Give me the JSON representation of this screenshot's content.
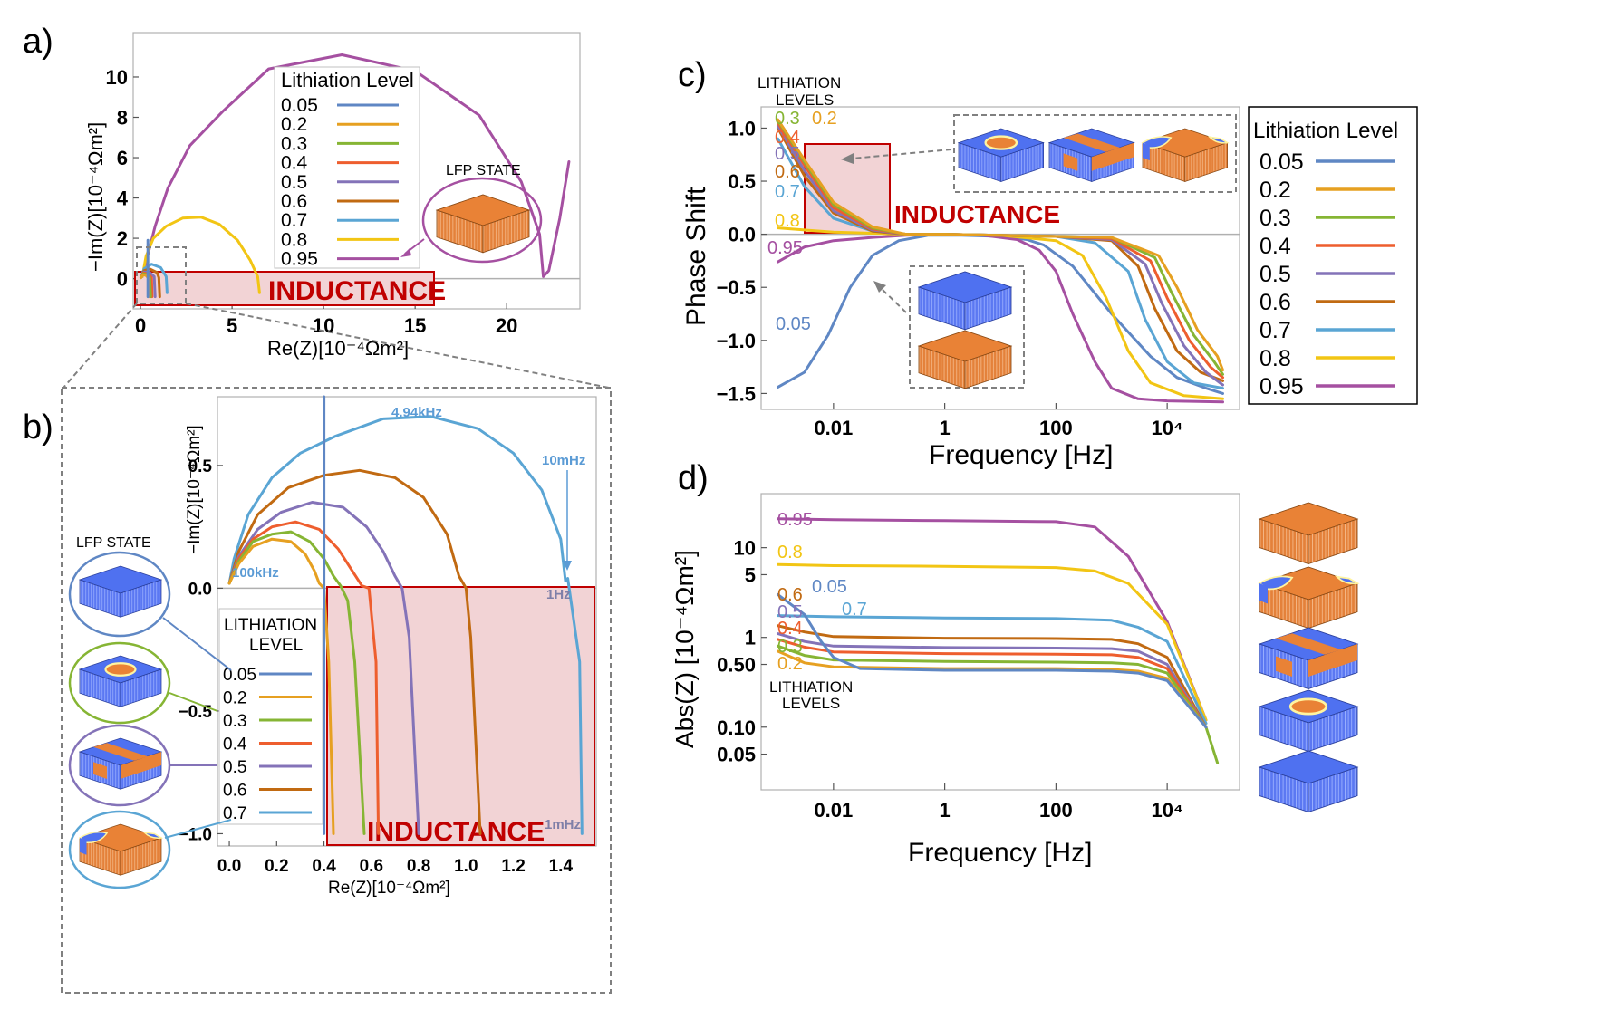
{
  "colors": {
    "0.05": "#5f87c4",
    "0.2": "#e6a021",
    "0.3": "#86b534",
    "0.4": "#ee5e2e",
    "0.5": "#8473b8",
    "0.6": "#c16a12",
    "0.7": "#5aa5d4",
    "0.8": "#f2c514",
    "0.95": "#a550a1",
    "inductance_fill": "#f2d3d5",
    "inductance_border": "#c00000",
    "blue_slab": "#4f71f0",
    "orange_slab": "#e98236"
  },
  "icons": [
    "lfp-slab-icon"
  ],
  "chart_data": [
    {
      "panel": "a)",
      "type": "line",
      "xlabel": "Re(Z)[10⁻⁴Ωm²]",
      "ylabel": "−Im(Z)[10⁻⁴Ωm²]",
      "xlim": [
        -0.4,
        24
      ],
      "ylim": [
        -1.5,
        12.2
      ],
      "xticks": [
        "0",
        "5",
        "10",
        "15",
        "20"
      ],
      "yticks": [
        "0",
        "2",
        "4",
        "6",
        "8",
        "10"
      ],
      "legend_title": "Lithiation Level",
      "legend_entries": [
        "0.05",
        "0.2",
        "0.3",
        "0.4",
        "0.5",
        "0.6",
        "0.7",
        "0.8",
        "0.95"
      ],
      "annotation": "INDUCTANCE",
      "inset_label": "LFP STATE",
      "series": [
        {
          "name": "0.95",
          "x": [
            0.1,
            0.8,
            1.5,
            2.7,
            4.5,
            7,
            11,
            15,
            18.5,
            20.8,
            21.8,
            22,
            22.3,
            22.9,
            23.4
          ],
          "y": [
            0.1,
            2.6,
            4.5,
            6.6,
            8.3,
            10.4,
            11.1,
            10.3,
            8.1,
            4.8,
            2.2,
            0.1,
            0.4,
            3,
            5.8
          ]
        },
        {
          "name": "0.8",
          "x": [
            0.1,
            0.3,
            0.7,
            1.4,
            2.3,
            3.3,
            4.3,
            5.3,
            6,
            6.4,
            6.5
          ],
          "y": [
            0.1,
            1.1,
            2,
            2.6,
            3,
            3.05,
            2.7,
            1.9,
            0.9,
            0.1,
            -0.7
          ]
        },
        {
          "name": "0.7",
          "x": [
            0.02,
            0.2,
            0.6,
            1.1,
            1.4,
            1.45
          ],
          "y": [
            0.05,
            0.5,
            0.72,
            0.55,
            0.1,
            -0.7
          ]
        },
        {
          "name": "0.6",
          "x": [
            0.02,
            0.2,
            0.5,
            0.9,
            1.0,
            1.05
          ],
          "y": [
            0.05,
            0.4,
            0.48,
            0.3,
            0.05,
            -0.9
          ]
        },
        {
          "name": "0.5",
          "x": [
            0.02,
            0.2,
            0.5,
            0.75,
            0.8
          ],
          "y": [
            0.05,
            0.33,
            0.3,
            0.1,
            -0.9
          ]
        },
        {
          "name": "0.4",
          "x": [
            0.02,
            0.15,
            0.4,
            0.6,
            0.63
          ],
          "y": [
            0.05,
            0.28,
            0.25,
            0.05,
            -0.9
          ]
        },
        {
          "name": "0.3",
          "x": [
            0.02,
            0.15,
            0.35,
            0.5,
            0.55
          ],
          "y": [
            0.05,
            0.24,
            0.2,
            0.05,
            -0.9
          ]
        },
        {
          "name": "0.2",
          "x": [
            0.02,
            0.12,
            0.3,
            0.42,
            0.45
          ],
          "y": [
            0.05,
            0.2,
            0.16,
            0.03,
            -0.9
          ]
        },
        {
          "name": "0.05",
          "x": [
            0.4,
            0.4
          ],
          "y": [
            1.9,
            -0.9
          ]
        }
      ]
    },
    {
      "panel": "b)",
      "type": "line",
      "xlabel": "Re(Z)[10⁻⁴Ωm²]",
      "ylabel": "−Im(Z)[10⁻⁴Ωm²]",
      "xlim": [
        -0.05,
        1.55
      ],
      "ylim": [
        -1.05,
        0.78
      ],
      "xticks": [
        "0.0",
        "0.2",
        "0.4",
        "0.6",
        "0.8",
        "1.0",
        "1.2",
        "1.4"
      ],
      "yticks": [
        "0.5",
        "0.0",
        "−0.5",
        "−1.0"
      ],
      "legend_title": [
        "LITHIATION",
        "LEVEL"
      ],
      "legend_entries": [
        "0.05",
        "0.2",
        "0.3",
        "0.4",
        "0.5",
        "0.6",
        "0.7"
      ],
      "annotation": "INDUCTANCE",
      "inset_label": "LFP STATE",
      "freq_labels": [
        "4.94kHz",
        "10mHz",
        "100kHz",
        "1Hz",
        "1mHz"
      ],
      "series": [
        {
          "name": "0.7",
          "x": [
            0.0,
            0.02,
            0.08,
            0.18,
            0.3,
            0.45,
            0.65,
            0.85,
            1.05,
            1.2,
            1.32,
            1.4,
            1.42,
            1.43,
            1.48,
            1.49
          ],
          "y": [
            0.02,
            0.12,
            0.3,
            0.45,
            0.55,
            0.62,
            0.69,
            0.7,
            0.65,
            0.55,
            0.4,
            0.2,
            0.03,
            0.04,
            -0.3,
            -1.0
          ]
        },
        {
          "name": "0.6",
          "x": [
            0.0,
            0.04,
            0.12,
            0.25,
            0.4,
            0.55,
            0.7,
            0.82,
            0.92,
            0.97,
            1.0,
            1.02,
            1.06
          ],
          "y": [
            0.02,
            0.15,
            0.3,
            0.41,
            0.46,
            0.48,
            0.45,
            0.37,
            0.22,
            0.05,
            0.0,
            -0.2,
            -1.0
          ]
        },
        {
          "name": "0.5",
          "x": [
            0.0,
            0.04,
            0.12,
            0.22,
            0.35,
            0.48,
            0.58,
            0.65,
            0.7,
            0.73,
            0.76,
            0.8
          ],
          "y": [
            0.02,
            0.13,
            0.24,
            0.31,
            0.35,
            0.33,
            0.25,
            0.15,
            0.05,
            0.0,
            -0.2,
            -1.0
          ]
        },
        {
          "name": "0.4",
          "x": [
            0.0,
            0.04,
            0.1,
            0.18,
            0.28,
            0.38,
            0.46,
            0.52,
            0.56,
            0.59,
            0.62,
            0.63
          ],
          "y": [
            0.02,
            0.12,
            0.2,
            0.25,
            0.27,
            0.24,
            0.16,
            0.07,
            0.01,
            0.0,
            -0.3,
            -1.0
          ]
        },
        {
          "name": "0.3",
          "x": [
            0.0,
            0.04,
            0.1,
            0.18,
            0.26,
            0.34,
            0.4,
            0.44,
            0.47,
            0.5,
            0.53,
            0.57
          ],
          "y": [
            0.02,
            0.11,
            0.19,
            0.22,
            0.23,
            0.19,
            0.12,
            0.05,
            0.01,
            -0.05,
            -0.3,
            -1.0
          ]
        },
        {
          "name": "0.2",
          "x": [
            0.0,
            0.04,
            0.1,
            0.18,
            0.26,
            0.32,
            0.36,
            0.38,
            0.4,
            0.42,
            0.44
          ],
          "y": [
            0.02,
            0.1,
            0.17,
            0.2,
            0.19,
            0.14,
            0.07,
            0.02,
            0.0,
            -0.3,
            -1.0
          ]
        },
        {
          "name": "0.05",
          "x": [
            0.4,
            0.4
          ],
          "y": [
            0.78,
            -1.0
          ]
        }
      ]
    },
    {
      "panel": "c)",
      "type": "line",
      "xscale": "log",
      "xlabel": "Frequency [Hz]",
      "ylabel": "Phase Shift",
      "xlim": [
        0.0005,
        200000
      ],
      "ylim": [
        -1.65,
        1.2
      ],
      "xticks": [
        "0.01",
        "1",
        "100",
        "10⁴"
      ],
      "yticks": [
        "1.0",
        "0.5",
        "0.0",
        "−0.5",
        "−1.0",
        "−1.5"
      ],
      "legend_title": "Lithiation Level",
      "legend_entries": [
        "0.05",
        "0.2",
        "0.3",
        "0.4",
        "0.5",
        "0.6",
        "0.7",
        "0.8",
        "0.95"
      ],
      "inline_title": [
        "LITHIATION",
        "LEVELS"
      ],
      "annotation": "INDUCTANCE",
      "series": [
        {
          "name": "0.05",
          "x": [
            0.001,
            0.003,
            0.008,
            0.02,
            0.05,
            0.15,
            0.5,
            2,
            10,
            30,
            60,
            200,
            1000,
            5000,
            15000,
            50000,
            100000
          ],
          "y": [
            -1.44,
            -1.3,
            -0.95,
            -0.5,
            -0.2,
            -0.06,
            -0.01,
            -0.01,
            -0.02,
            -0.05,
            -0.1,
            -0.3,
            -0.75,
            -1.15,
            -1.35,
            -1.45,
            -1.5
          ]
        },
        {
          "name": "0.95",
          "x": [
            0.001,
            0.003,
            0.01,
            0.05,
            0.2,
            1,
            5,
            20,
            50,
            100,
            200,
            500,
            1000,
            3000,
            10000,
            100000
          ],
          "y": [
            -0.26,
            -0.12,
            -0.06,
            -0.03,
            -0.01,
            0.0,
            -0.01,
            -0.05,
            -0.15,
            -0.35,
            -0.75,
            -1.2,
            -1.45,
            -1.55,
            -1.57,
            -1.58
          ]
        },
        {
          "name": "0.8",
          "x": [
            0.001,
            0.003,
            0.01,
            0.05,
            0.2,
            1,
            10,
            100,
            300,
            800,
            2000,
            5000,
            20000,
            100000
          ],
          "y": [
            0.06,
            0.04,
            0.02,
            0.01,
            0.0,
            0.0,
            -0.01,
            -0.06,
            -0.2,
            -0.6,
            -1.1,
            -1.4,
            -1.52,
            -1.55
          ]
        },
        {
          "name": "0.7",
          "x": [
            0.001,
            0.003,
            0.01,
            0.05,
            0.2,
            1,
            10,
            100,
            500,
            2000,
            4000,
            10000,
            30000,
            100000
          ],
          "y": [
            0.9,
            0.45,
            0.15,
            0.03,
            0.0,
            0.0,
            -0.01,
            -0.02,
            -0.08,
            -0.35,
            -0.8,
            -1.2,
            -1.4,
            -1.45
          ]
        },
        {
          "name": "0.6",
          "x": [
            0.001,
            0.003,
            0.01,
            0.05,
            0.2,
            1,
            10,
            100,
            1000,
            3000,
            6000,
            15000,
            40000,
            100000
          ],
          "y": [
            1.0,
            0.55,
            0.2,
            0.03,
            0.0,
            0.0,
            -0.01,
            -0.02,
            -0.06,
            -0.3,
            -0.7,
            -1.1,
            -1.3,
            -1.38
          ]
        },
        {
          "name": "0.5",
          "x": [
            0.001,
            0.003,
            0.01,
            0.05,
            0.2,
            1,
            10,
            100,
            1000,
            4000,
            8000,
            20000,
            50000,
            100000
          ],
          "y": [
            1.02,
            0.6,
            0.22,
            0.04,
            0.0,
            0.0,
            -0.01,
            -0.02,
            -0.05,
            -0.28,
            -0.65,
            -1.05,
            -1.3,
            -1.42
          ]
        },
        {
          "name": "0.4",
          "x": [
            0.001,
            0.003,
            0.01,
            0.05,
            0.2,
            1,
            10,
            100,
            1000,
            5000,
            10000,
            25000,
            60000,
            100000
          ],
          "y": [
            1.05,
            0.65,
            0.25,
            0.05,
            0.0,
            0.0,
            -0.01,
            -0.02,
            -0.04,
            -0.25,
            -0.6,
            -1.0,
            -1.25,
            -1.35
          ]
        },
        {
          "name": "0.3",
          "x": [
            0.001,
            0.003,
            0.01,
            0.05,
            0.2,
            1,
            10,
            100,
            1000,
            6000,
            12000,
            30000,
            70000,
            100000
          ],
          "y": [
            1.07,
            0.68,
            0.28,
            0.06,
            0.0,
            0.0,
            -0.01,
            -0.02,
            -0.03,
            -0.22,
            -0.55,
            -0.95,
            -1.2,
            -1.32
          ]
        },
        {
          "name": "0.2",
          "x": [
            0.001,
            0.003,
            0.01,
            0.05,
            0.2,
            1,
            10,
            100,
            1000,
            7000,
            15000,
            35000,
            80000,
            100000
          ],
          "y": [
            1.08,
            0.7,
            0.3,
            0.07,
            0.0,
            0.0,
            -0.01,
            -0.02,
            -0.03,
            -0.2,
            -0.5,
            -0.9,
            -1.15,
            -1.28
          ]
        }
      ]
    },
    {
      "panel": "d)",
      "type": "line",
      "xscale": "log",
      "yscale": "log",
      "xlabel": "Frequency [Hz]",
      "ylabel": "Abs(Z) [10⁻⁴Ωm²]",
      "xlim": [
        0.0005,
        200000
      ],
      "ylim": [
        0.02,
        40
      ],
      "xticks": [
        "0.01",
        "1",
        "100",
        "10⁴"
      ],
      "yticks": [
        "10",
        "5",
        "1",
        "0.50",
        "0.10",
        "0.05"
      ],
      "inline_title": [
        "LITHIATION",
        "LEVELS"
      ],
      "series": [
        {
          "name": "0.95",
          "x": [
            0.001,
            0.01,
            1,
            100,
            500,
            2000,
            10000,
            50000
          ],
          "y": [
            21,
            20.5,
            20,
            19.5,
            17,
            8,
            1.5,
            0.12
          ]
        },
        {
          "name": "0.8",
          "x": [
            0.001,
            0.01,
            1,
            100,
            500,
            2000,
            10000,
            50000
          ],
          "y": [
            6.5,
            6.3,
            6.2,
            6.0,
            5.5,
            4,
            1.4,
            0.12
          ]
        },
        {
          "name": "0.7",
          "x": [
            0.001,
            0.01,
            1,
            100,
            1000,
            3000,
            10000,
            50000
          ],
          "y": [
            1.75,
            1.7,
            1.65,
            1.62,
            1.55,
            1.3,
            0.9,
            0.11
          ]
        },
        {
          "name": "0.6",
          "x": [
            0.001,
            0.003,
            0.01,
            1,
            100,
            1000,
            3000,
            10000,
            50000
          ],
          "y": [
            1.35,
            1.15,
            1.02,
            0.98,
            0.97,
            0.95,
            0.85,
            0.6,
            0.1
          ]
        },
        {
          "name": "0.5",
          "x": [
            0.001,
            0.003,
            0.01,
            1,
            100,
            1000,
            3000,
            10000,
            50000
          ],
          "y": [
            1.1,
            0.9,
            0.8,
            0.77,
            0.76,
            0.75,
            0.7,
            0.5,
            0.1
          ]
        },
        {
          "name": "0.4",
          "x": [
            0.001,
            0.003,
            0.01,
            1,
            100,
            1000,
            3000,
            10000,
            50000
          ],
          "y": [
            0.95,
            0.78,
            0.69,
            0.66,
            0.65,
            0.64,
            0.6,
            0.45,
            0.1
          ]
        },
        {
          "name": "0.3",
          "x": [
            0.001,
            0.003,
            0.01,
            1,
            100,
            1000,
            3000,
            10000,
            50000,
            80000
          ],
          "y": [
            0.8,
            0.63,
            0.56,
            0.54,
            0.53,
            0.52,
            0.5,
            0.4,
            0.1,
            0.04
          ]
        },
        {
          "name": "0.2",
          "x": [
            0.001,
            0.003,
            0.01,
            1,
            100,
            1000,
            3000,
            10000,
            50000
          ],
          "y": [
            0.7,
            0.52,
            0.47,
            0.45,
            0.45,
            0.44,
            0.42,
            0.35,
            0.1
          ]
        },
        {
          "name": "0.05",
          "x": [
            0.001,
            0.003,
            0.006,
            0.01,
            0.03,
            1,
            100,
            1000,
            3000,
            10000,
            50000
          ],
          "y": [
            3.0,
            1.8,
            0.9,
            0.6,
            0.45,
            0.43,
            0.43,
            0.42,
            0.4,
            0.33,
            0.1
          ]
        }
      ]
    }
  ],
  "panel_c_inline_labels": [
    "0.3",
    "0.2",
    "0.4",
    "0.5",
    "0.6",
    "0.7",
    "0.8",
    "0.95",
    "0.05"
  ],
  "panel_d_inline_labels": [
    "0.95",
    "0.8",
    "0.05",
    "0.7",
    "0.6",
    "0.5",
    "0.4",
    "0.3",
    "0.2"
  ]
}
